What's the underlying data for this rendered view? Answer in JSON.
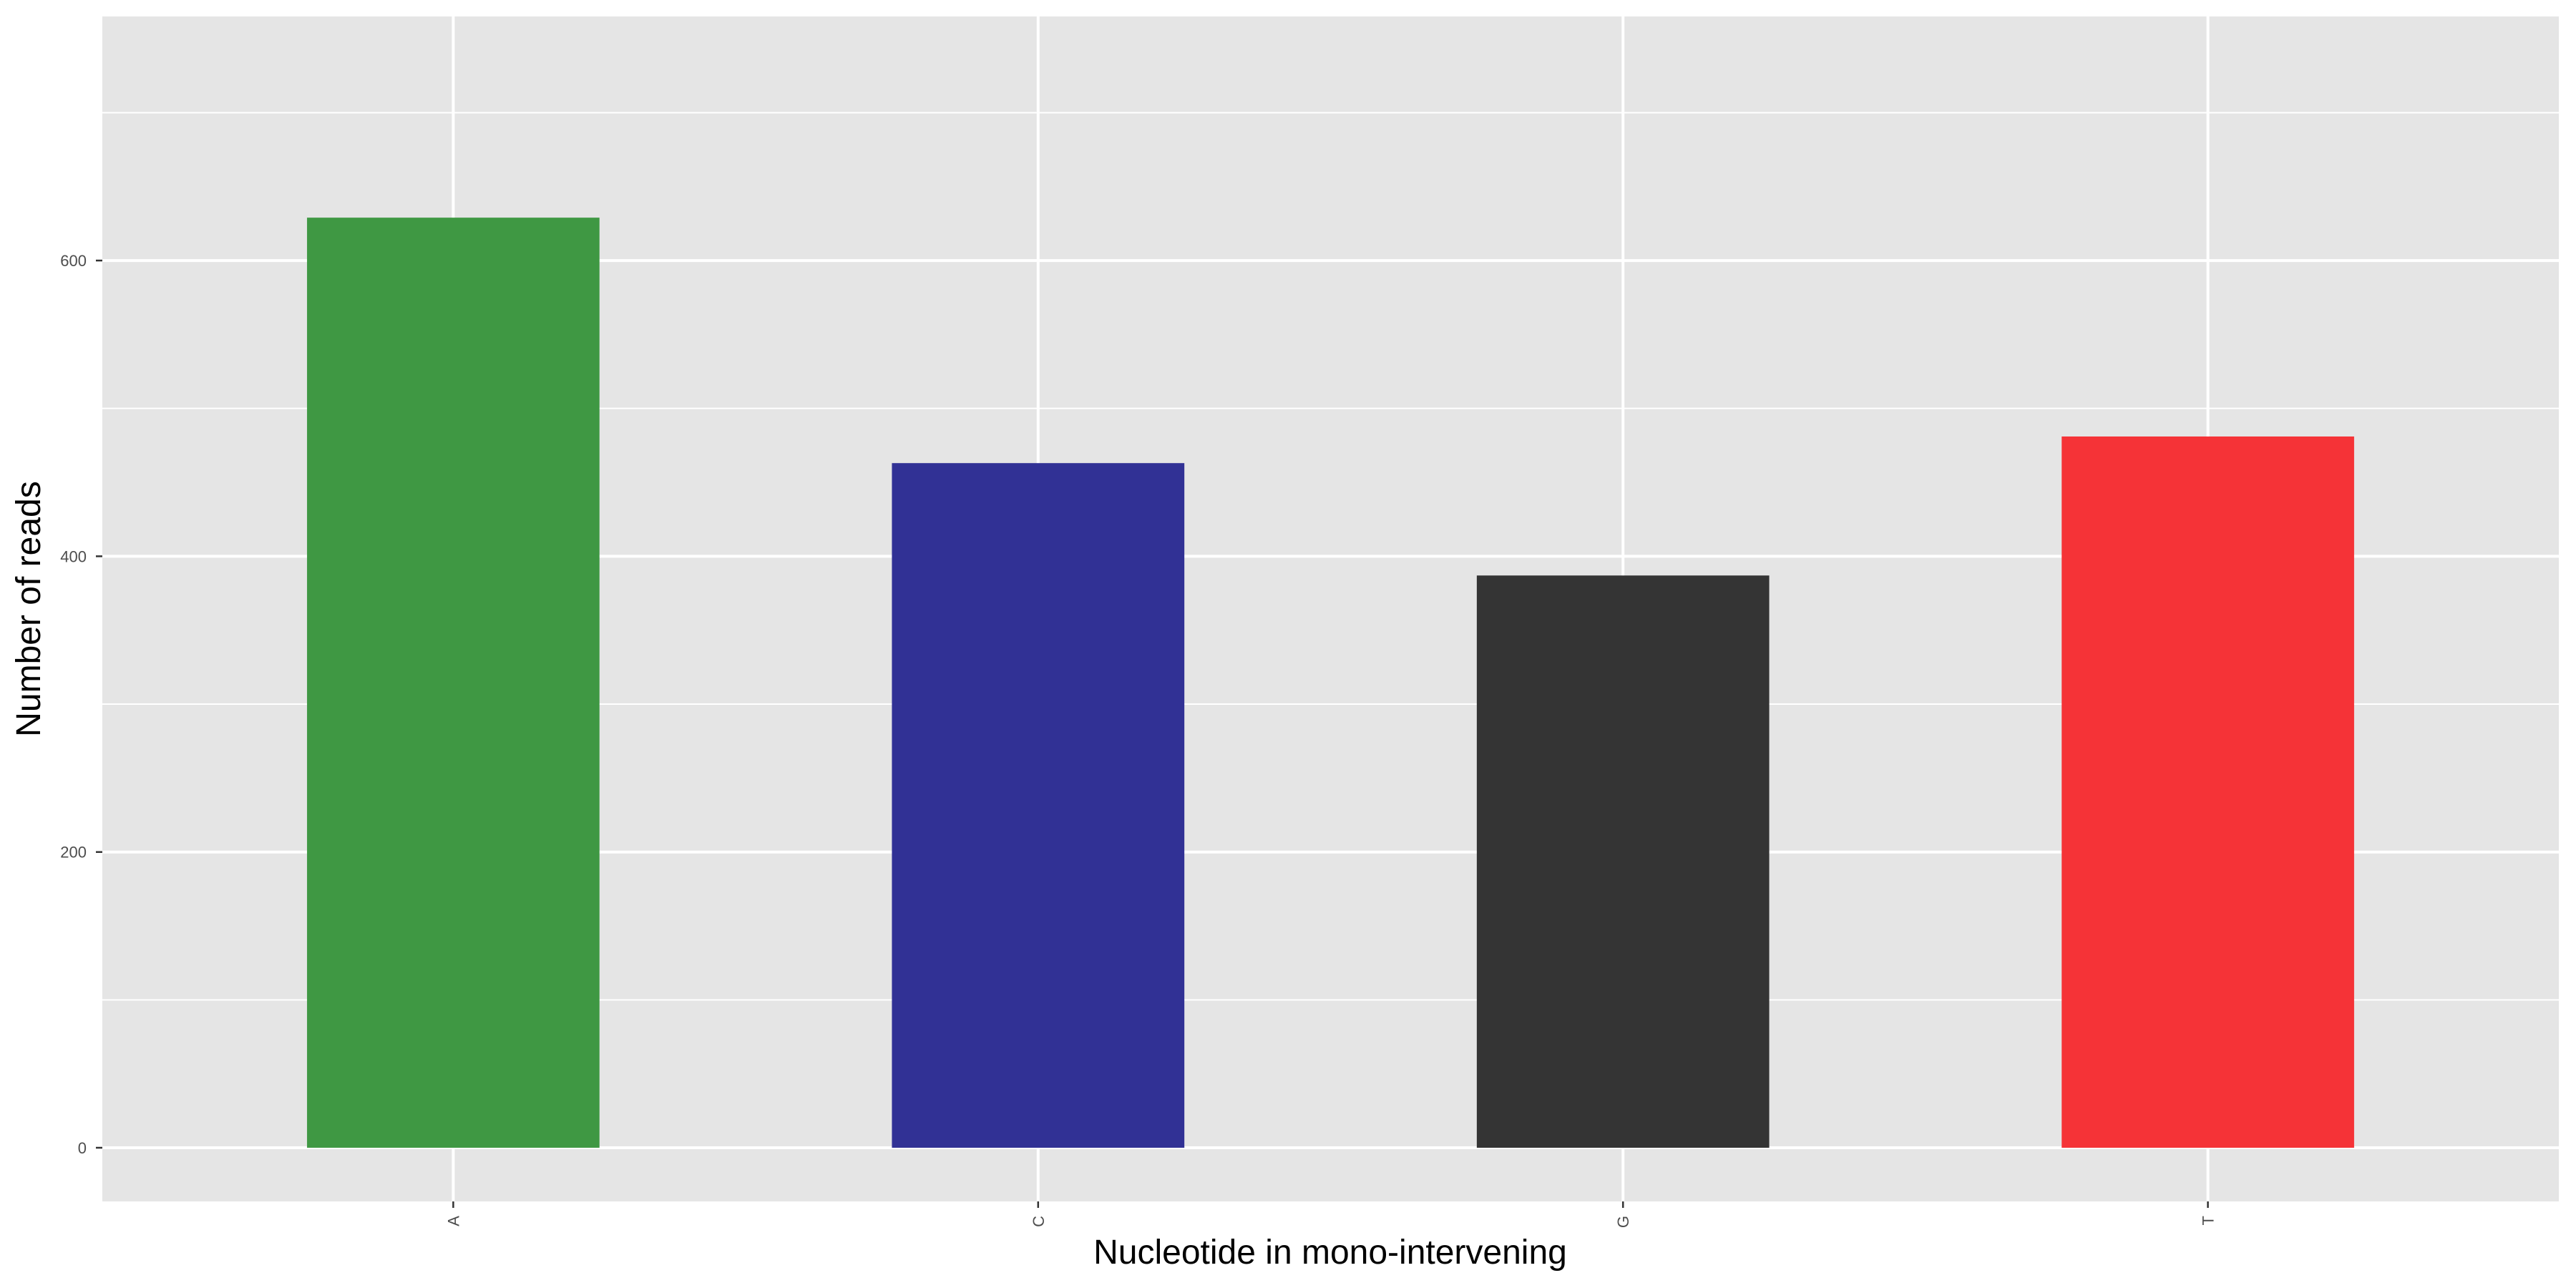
{
  "chart_data": {
    "type": "bar",
    "title": "",
    "xlabel": "Nucleotide in mono-intervening",
    "ylabel": "Number of reads",
    "categories": [
      "A",
      "C",
      "G",
      "T"
    ],
    "values": [
      629,
      463,
      387,
      481
    ],
    "colors": [
      "#3b963f",
      "#2d2d93",
      "#303030",
      "#f52f33"
    ],
    "ylim": [
      -5,
      765
    ],
    "yticks": [
      0,
      200,
      400,
      600
    ],
    "yticks_minor": [
      100,
      300,
      500,
      700
    ],
    "ytick_labels": [
      "0",
      "200",
      "400",
      "600"
    ],
    "grid": true,
    "legend": "none",
    "x_tick_label_rotation": "vertical"
  }
}
